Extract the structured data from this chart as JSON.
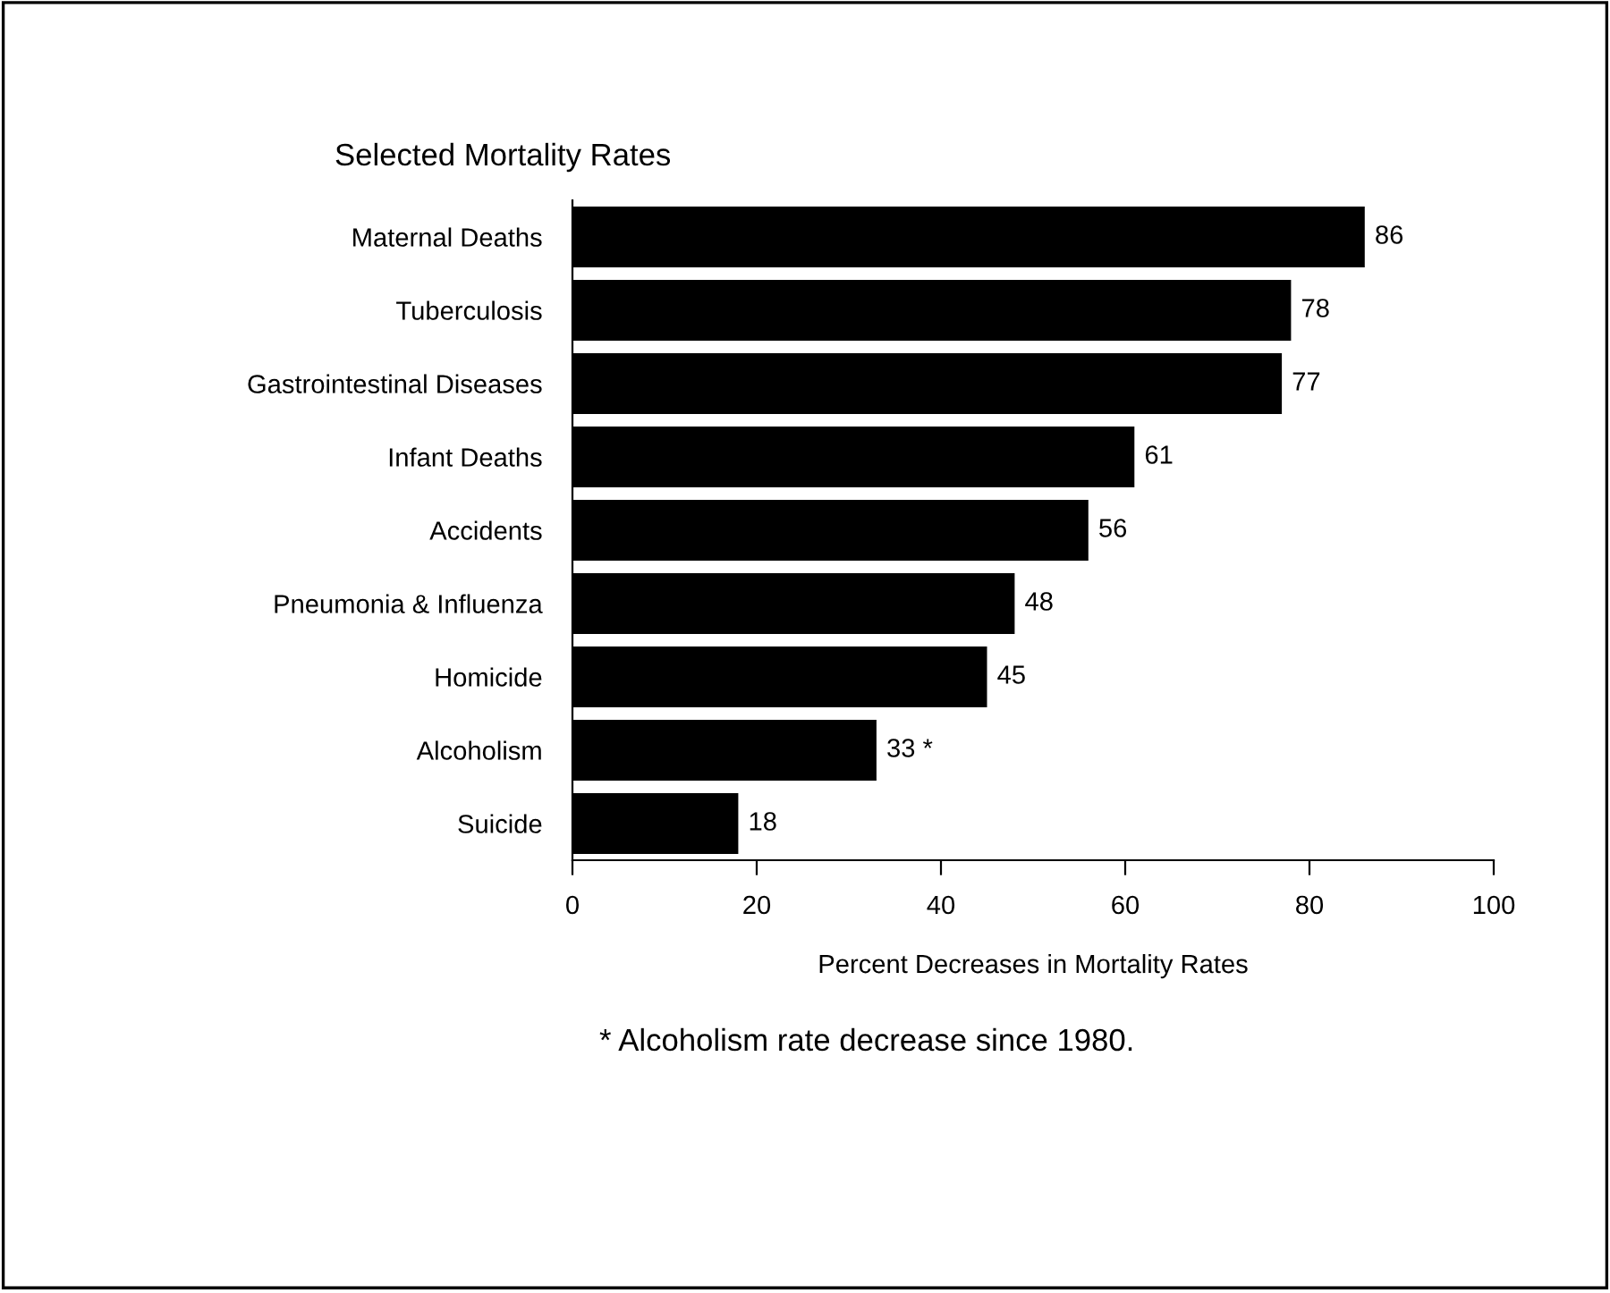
{
  "chart_data": {
    "type": "bar",
    "orientation": "horizontal",
    "title": "Selected Mortality Rates",
    "xlabel": "Percent Decreases in Mortality Rates",
    "categories": [
      "Maternal Deaths",
      "Tuberculosis",
      "Gastrointestinal Diseases",
      "Infant Deaths",
      "Accidents",
      "Pneumonia & Influenza",
      "Homicide",
      "Alcoholism",
      "Suicide"
    ],
    "values": [
      86,
      78,
      77,
      61,
      56,
      48,
      45,
      33,
      18
    ],
    "value_labels": [
      "86",
      "78",
      "77",
      "61",
      "56",
      "48",
      "45",
      "33 *",
      "18"
    ],
    "color": "#000000",
    "xlim": [
      0,
      100
    ],
    "xticks": [
      0,
      20,
      40,
      60,
      80,
      100
    ],
    "grid": false,
    "legend": false,
    "annotations": [
      "* Alcoholism rate decrease since 1980."
    ]
  }
}
